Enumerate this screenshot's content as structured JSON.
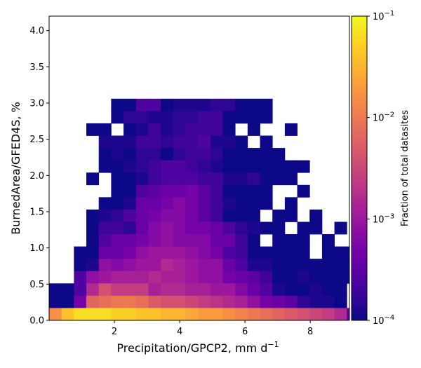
{
  "chart_data": {
    "type": "heatmap",
    "xlabel": "Precipitation/GPCP2,  mm d",
    "xlabel_sup": "−1",
    "ylabel": "BurnedArea/GFED4S,  %",
    "colorbar_label": "Fraction of total datasites",
    "colorbar_scale": "log",
    "colorbar_range": [
      0.0001,
      0.1
    ],
    "colormap": "plasma",
    "xlim": [
      0,
      9.2
    ],
    "ylim": [
      0,
      4.2
    ],
    "x_bin_width": 0.38,
    "y_bin_width": 0.17,
    "x_ticks": [
      {
        "value": 2,
        "label": "2"
      },
      {
        "value": 4,
        "label": "4"
      },
      {
        "value": 6,
        "label": "6"
      },
      {
        "value": 8,
        "label": "8"
      }
    ],
    "y_ticks": [
      {
        "value": 0.0,
        "label": "0.0"
      },
      {
        "value": 0.5,
        "label": "0.5"
      },
      {
        "value": 1.0,
        "label": "1.0"
      },
      {
        "value": 1.5,
        "label": "1.5"
      },
      {
        "value": 2.0,
        "label": "2.0"
      },
      {
        "value": 2.5,
        "label": "2.5"
      },
      {
        "value": 3.0,
        "label": "3.0"
      },
      {
        "value": 3.5,
        "label": "3.5"
      },
      {
        "value": 4.0,
        "label": "4.0"
      }
    ],
    "colorbar_ticks": [
      {
        "value": 0.0001,
        "base": "10",
        "exp": "−4"
      },
      {
        "value": 0.001,
        "base": "10",
        "exp": "−3"
      },
      {
        "value": 0.01,
        "base": "10",
        "exp": "−2"
      },
      {
        "value": 0.1,
        "base": "10",
        "exp": "−1"
      }
    ],
    "log10_fraction_grid_top_to_bottom": [
      ".....-4.0-4.0-3.6-3.6-4.0-3.9-3.9-3.9-3.8-3.8-4.0-4.0-4.0...........",
      ".....-4.0-3.8-3.8-3.9-3.9-3.8-3.8-3.7-3.7-4.0-4.0-4.0-4.0...........",
      "...-4.0-4.0.-4.0-3.9-3.7-3.9-3.8-3.7-3.7-3.7-4.0.-4.0..-4.0.........",
      "....-3.9-3.9-3.9-3.7-3.7-3.8-3.7-3.7-3.6-3.9-3.9-4.0.-4.0...........",
      "....-4.0-3.9-4.0-3.8-3.8-4.0-3.8-3.7-3.7-3.8-4.0-4.0-4.0-4.0-4.0.........",
      "....-4.0-4.0-3.9-3.8-3.7-3.6-3.6-3.7-3.8-3.9-4.0-4.0-4.0-4.0-4.0-4.0-4.0.......",
      "...-4.0.-4.0-4.0-3.9-3.7-3.6-3.6-3.6-3.7-3.7-3.9-3.9-3.8-4.0-4.0-4.0.........",
      ".....-4.0-4.0-3.6-3.5-3.4-3.4-3.3-3.5-3.7-4.0-4.0-4.0-4.0..-4.0.........",
      "....-4.0-4.0-3.9-3.4-3.4-3.3-3.2-3.3-3.5-3.7-3.9-4.0-4.0-4.0.-4.0.........",
      "...-4.0-3.9-3.8-3.6-3.4-3.3-3.2-3.2-3.3-3.5-3.7-4.0-4.0-4.0.-4.0-4.0.-4.0.......",
      "...-4.0-3.7-3.7-3.8-3.4-3.2-3.1-3.2-3.3-3.3-3.4-3.6-3.8-3.9-4.0-4.0.-4.0-4.0.-4.0.....",
      "...-4.0-3.6-3.4-3.4-3.3-3.2-3.1-3.2-3.2-3.2-3.4-3.4-3.7-4.0.-4.0-4.0-4.0.-4.0.....",
      "..-4.0-4.0-3.4-3.4-3.3-3.1-3.0-3.0-3.0-3.1-3.2-3.3-3.6-3.7-4.0-4.0-4.0-4.0-4.0.-4.0-4.0-4.0...",
      "..-4.0-3.9-3.1-3.2-3.1-3.0-3.0-2.8-2.9-3.0-3.1-3.1-3.4-3.6-3.9-3.9-4.0-4.0-4.0-4.0-4.0-4.0-4.0...",
      "..-3.6-3.1-3.0-2.9-2.9-2.9-2.8-2.9-2.9-3.0-3.1-3.1-3.3-3.4-3.5-3.7-4.0-4.0-3.9-4.0-4.0-4.0-4.0...",
      "-4.0-4.0-3.6-2.8-2.4-2.6-2.6-2.6-2.9-2.8-2.8-2.9-2.9-3.0-3.0-3.2-3.4-3.6-3.9-4.0-4.0-3.9-4.0-4.0...",
      "-4.0-4.0-3.3-2.2-2.1-2.0-2.0-2.1-2.3-2.4-2.4-2.5-2.6-2.7-2.8-2.9-3.1-3.3-3.4-3.5-3.8-3.9-3.9-4.0...",
      "-1.8-1.4-1.2-1.2-1.2-1.3-1.3-1.4-1.4-1.5-1.5-1.6-1.7-1.7-1.8-1.9-2.0-2.1-2.2-2.3-2.4-2.5-2.6-2.8-3.5"
    ]
  }
}
